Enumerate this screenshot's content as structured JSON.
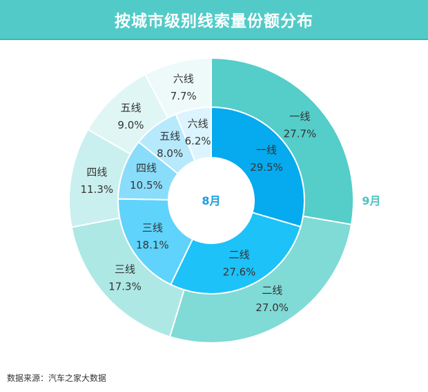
{
  "title": "按城市级别线索量份额分布",
  "source": "数据来源：汽车之家大数据",
  "chart_data": {
    "type": "pie",
    "subtype": "nested-donut",
    "title": "按城市级别线索量份额分布",
    "categories": [
      "一线",
      "二线",
      "三线",
      "四线",
      "五线",
      "六线"
    ],
    "series": [
      {
        "name": "8月",
        "ring": "inner",
        "values": [
          29.5,
          27.6,
          18.1,
          10.5,
          8.0,
          6.2
        ],
        "labels": [
          "29.5%",
          "27.6%",
          "18.1%",
          "10.5%",
          "8.0%",
          "6.2%"
        ],
        "colors": [
          "#06aaee",
          "#1cc2f8",
          "#5fd3fb",
          "#8adcfb",
          "#b6e9fc",
          "#dcf4fd"
        ],
        "label_color": "#1a9fe0"
      },
      {
        "name": "9月",
        "ring": "outer",
        "values": [
          27.7,
          27.0,
          17.3,
          11.3,
          9.0,
          7.7
        ],
        "labels": [
          "27.7%",
          "27.0%",
          "17.3%",
          "11.3%",
          "9.0%",
          "7.7%"
        ],
        "colors": [
          "#55cdc9",
          "#80dad6",
          "#ade8e5",
          "#c9f0ee",
          "#dff6f4",
          "#eefafa"
        ],
        "label_color": "#4cc4c0"
      }
    ]
  }
}
